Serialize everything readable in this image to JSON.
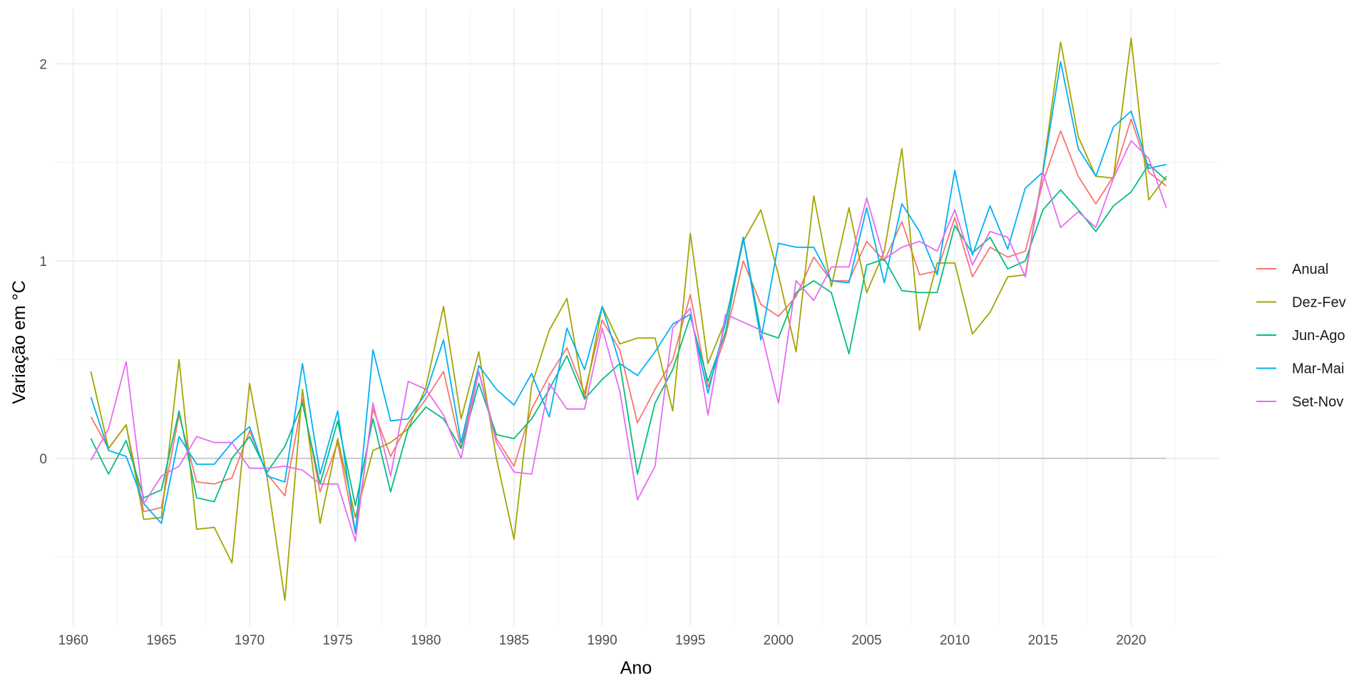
{
  "chart_data": {
    "type": "line",
    "title": "",
    "xlabel": "Ano",
    "ylabel": "Variação em °C",
    "xlim": [
      1959,
      2025
    ],
    "ylim": [
      -0.85,
      2.28
    ],
    "x_ticks": [
      1960,
      1965,
      1970,
      1975,
      1980,
      1985,
      1990,
      1995,
      2000,
      2005,
      2010,
      2015,
      2020
    ],
    "y_ticks": [
      0,
      1,
      2
    ],
    "y_minor_ticks": [
      -0.5,
      0.5,
      1.5
    ],
    "grid": true,
    "reference_line_y": 0,
    "legend_position": "right",
    "x": [
      1961,
      1962,
      1963,
      1964,
      1965,
      1966,
      1967,
      1968,
      1969,
      1970,
      1971,
      1972,
      1973,
      1974,
      1975,
      1976,
      1977,
      1978,
      1979,
      1980,
      1981,
      1982,
      1983,
      1984,
      1985,
      1986,
      1987,
      1988,
      1989,
      1990,
      1991,
      1992,
      1993,
      1994,
      1995,
      1996,
      1997,
      1998,
      1999,
      2000,
      2001,
      2002,
      2003,
      2004,
      2005,
      2006,
      2007,
      2008,
      2009,
      2010,
      2011,
      2012,
      2013,
      2014,
      2015,
      2016,
      2017,
      2018,
      2019,
      2020,
      2021,
      2022
    ],
    "series": [
      {
        "name": "Anual",
        "color": "#F8766D",
        "values": [
          0.21,
          0.05,
          0.17,
          -0.27,
          -0.25,
          0.22,
          -0.12,
          -0.13,
          -0.1,
          0.14,
          -0.08,
          -0.19,
          0.3,
          -0.17,
          0.08,
          -0.38,
          0.25,
          0.01,
          0.18,
          0.3,
          0.44,
          0.05,
          0.44,
          0.1,
          -0.04,
          0.25,
          0.42,
          0.56,
          0.33,
          0.7,
          0.55,
          0.18,
          0.35,
          0.5,
          0.83,
          0.36,
          0.62,
          1.0,
          0.78,
          0.72,
          0.82,
          1.02,
          0.9,
          0.9,
          1.1,
          1.0,
          1.2,
          0.93,
          0.95,
          1.22,
          0.92,
          1.07,
          1.02,
          1.05,
          1.4,
          1.66,
          1.43,
          1.29,
          1.43,
          1.72,
          1.45,
          1.38
        ]
      },
      {
        "name": "Dez-Fev",
        "color": "#A3A500",
        "values": [
          0.44,
          0.05,
          0.17,
          -0.31,
          -0.3,
          0.5,
          -0.36,
          -0.35,
          -0.53,
          0.38,
          -0.1,
          -0.72,
          0.35,
          -0.33,
          0.1,
          -0.3,
          0.04,
          0.08,
          0.15,
          0.36,
          0.77,
          0.2,
          0.54,
          0.0,
          -0.41,
          0.37,
          0.65,
          0.81,
          0.3,
          0.77,
          0.58,
          0.61,
          0.61,
          0.24,
          1.14,
          0.48,
          0.7,
          1.1,
          1.26,
          0.93,
          0.54,
          1.33,
          0.87,
          1.27,
          0.84,
          1.05,
          1.57,
          0.65,
          0.99,
          0.99,
          0.63,
          0.74,
          0.92,
          0.93,
          1.46,
          2.11,
          1.63,
          1.43,
          1.42,
          2.13,
          1.31,
          1.43
        ]
      },
      {
        "name": "Jun-Ago",
        "color": "#00BF7D",
        "values": [
          0.1,
          -0.08,
          0.09,
          -0.2,
          -0.16,
          0.24,
          -0.2,
          -0.22,
          0.0,
          0.11,
          -0.07,
          0.06,
          0.28,
          -0.13,
          0.19,
          -0.24,
          0.2,
          -0.17,
          0.15,
          0.26,
          0.2,
          0.05,
          0.38,
          0.12,
          0.1,
          0.2,
          0.35,
          0.52,
          0.3,
          0.4,
          0.48,
          -0.08,
          0.28,
          0.45,
          0.72,
          0.39,
          0.64,
          1.12,
          0.64,
          0.61,
          0.84,
          0.9,
          0.84,
          0.53,
          0.98,
          1.01,
          0.85,
          0.84,
          0.84,
          1.18,
          1.04,
          1.12,
          0.96,
          1.0,
          1.26,
          1.36,
          1.26,
          1.15,
          1.28,
          1.35,
          1.49,
          1.41
        ]
      },
      {
        "name": "Mar-Mai",
        "color": "#00B0F6",
        "values": [
          0.31,
          0.04,
          0.01,
          -0.23,
          -0.33,
          0.11,
          -0.03,
          -0.03,
          0.08,
          0.16,
          -0.09,
          -0.12,
          0.48,
          -0.08,
          0.24,
          -0.38,
          0.55,
          0.19,
          0.2,
          0.33,
          0.6,
          0.08,
          0.47,
          0.35,
          0.27,
          0.43,
          0.21,
          0.66,
          0.45,
          0.77,
          0.48,
          0.42,
          0.54,
          0.68,
          0.73,
          0.33,
          0.69,
          1.12,
          0.6,
          1.09,
          1.07,
          1.07,
          0.9,
          0.89,
          1.27,
          0.89,
          1.29,
          1.15,
          0.93,
          1.46,
          1.03,
          1.28,
          1.06,
          1.37,
          1.45,
          2.01,
          1.57,
          1.43,
          1.68,
          1.76,
          1.47,
          1.49
        ]
      },
      {
        "name": "Set-Nov",
        "color": "#E76BF3",
        "values": [
          -0.01,
          0.15,
          0.49,
          -0.23,
          -0.09,
          -0.04,
          0.11,
          0.08,
          0.08,
          -0.05,
          -0.05,
          -0.04,
          -0.06,
          -0.13,
          -0.13,
          -0.42,
          0.28,
          -0.09,
          0.39,
          0.35,
          0.22,
          0.0,
          0.44,
          0.08,
          -0.07,
          -0.08,
          0.38,
          0.25,
          0.25,
          0.66,
          0.34,
          -0.21,
          -0.04,
          0.66,
          0.76,
          0.22,
          0.73,
          0.69,
          0.65,
          0.28,
          0.9,
          0.8,
          0.97,
          0.97,
          1.32,
          1.01,
          1.07,
          1.1,
          1.05,
          1.26,
          0.98,
          1.15,
          1.12,
          0.92,
          1.45,
          1.17,
          1.25,
          1.17,
          1.42,
          1.61,
          1.52,
          1.27
        ]
      }
    ]
  }
}
